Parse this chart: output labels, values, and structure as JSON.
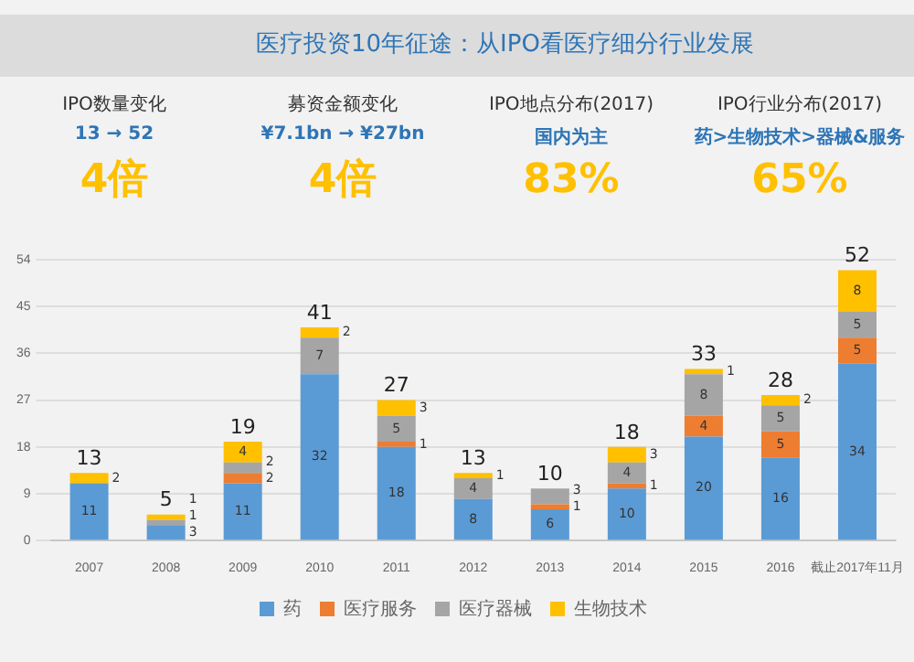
{
  "chart_data": {
    "type": "bar",
    "stacked": true,
    "title": "医疗投资10年征途：从IPO看医疗细分行业发展",
    "annotations": [
      "IPO数量变化",
      "13 → 52",
      "4倍",
      "募资金额变化",
      "¥7.1bn → ¥27bn",
      "4倍",
      "IPO地点分布(2017)",
      "国内为主",
      "83%",
      "IPO行业分布(2017)",
      "药>生物技术>器械&服务",
      "65%"
    ],
    "categories": [
      "2007",
      "2008",
      "2009",
      "2010",
      "2011",
      "2012",
      "2013",
      "2014",
      "2015",
      "2016",
      "截止2017年11月"
    ],
    "series": [
      {
        "name": "药",
        "color": "#5b9bd5",
        "values": [
          11,
          3,
          11,
          32,
          18,
          8,
          6,
          10,
          20,
          16,
          34
        ]
      },
      {
        "name": "医疗服务",
        "color": "#ed7d31",
        "values": [
          null,
          null,
          2,
          null,
          1,
          null,
          1,
          1,
          4,
          5,
          5
        ]
      },
      {
        "name": "医疗器械",
        "color": "#a5a5a5",
        "values": [
          null,
          1,
          2,
          7,
          5,
          4,
          3,
          4,
          8,
          5,
          5
        ]
      },
      {
        "name": "生物技术",
        "color": "#ffc000",
        "values": [
          2,
          1,
          4,
          2,
          3,
          1,
          null,
          3,
          1,
          2,
          8
        ]
      }
    ],
    "totals": [
      "13",
      "5",
      "19",
      "41",
      "27",
      "13",
      "10",
      "18",
      "33",
      "28",
      "52"
    ],
    "ylim": [
      0,
      54
    ],
    "yticks": [
      0,
      9,
      18,
      27,
      36,
      45,
      54
    ],
    "grid": "y",
    "legend": "bottom",
    "data_labels": true
  }
}
